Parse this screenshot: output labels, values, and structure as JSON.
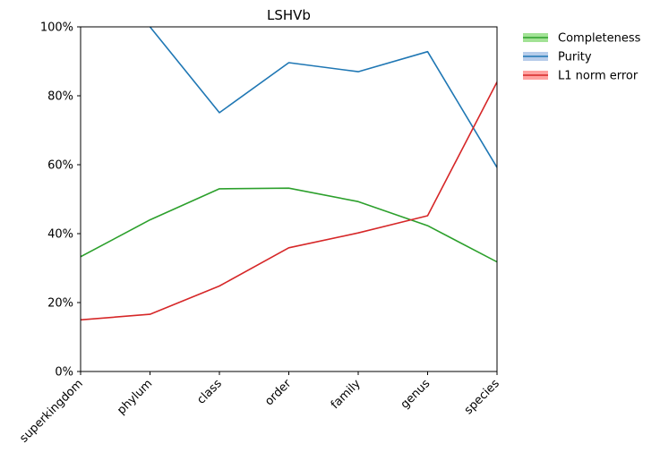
{
  "chart_data": {
    "type": "line",
    "title": "LSHVb",
    "xlabel": "",
    "ylabel": "",
    "categories": [
      "superkingdom",
      "phylum",
      "class",
      "order",
      "family",
      "genus",
      "species"
    ],
    "ylim": [
      0,
      100
    ],
    "yticks": [
      0,
      20,
      40,
      60,
      80,
      100
    ],
    "ytick_labels": [
      "0%",
      "20%",
      "40%",
      "60%",
      "80%",
      "100%"
    ],
    "grid": false,
    "legend_position": "outside-top-right",
    "series": [
      {
        "name": "Completeness",
        "color": "#2ca02c",
        "band_color": "#98df8a",
        "values": [
          33.3,
          44.0,
          53.0,
          53.2,
          49.3,
          42.3,
          31.8
        ]
      },
      {
        "name": "Purity",
        "color": "#1f77b4",
        "band_color": "#aec7e8",
        "values": [
          null,
          100.0,
          75.1,
          89.6,
          87.0,
          92.8,
          59.2
        ]
      },
      {
        "name": "L1 norm error",
        "color": "#d62728",
        "band_color": "#ff9896",
        "values": [
          15.0,
          16.6,
          24.8,
          35.9,
          40.2,
          45.2,
          84.0
        ]
      }
    ]
  }
}
